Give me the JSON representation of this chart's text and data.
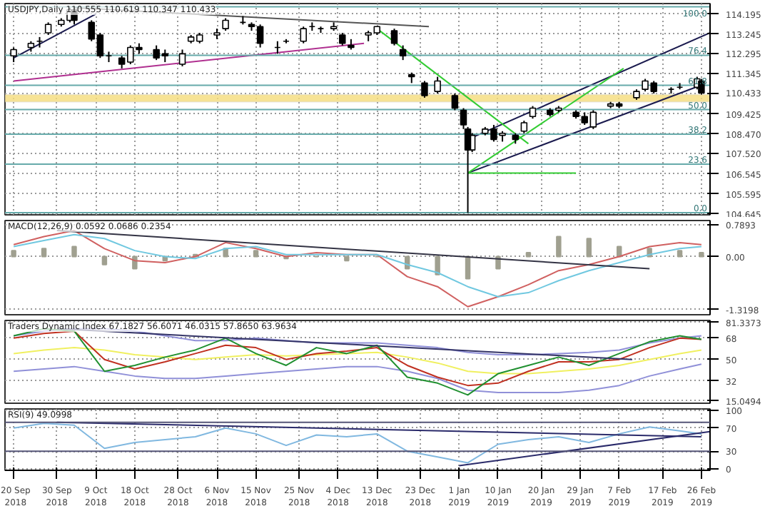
{
  "chart_data": [
    {
      "type": "candlestick",
      "title": "USDJPY,Daily 110.555 110.619 110.347 110.433",
      "grid": true,
      "tick_labels": "y",
      "xlim": [
        "2018-09-18",
        "2019-02-28"
      ],
      "xticks": [
        "2018-09-20",
        "2018-09-30",
        "2018-10-09",
        "2018-10-18",
        "2018-10-28",
        "2018-11-06",
        "2018-11-15",
        "2018-11-25",
        "2018-12-04",
        "2018-12-13",
        "2018-12-23",
        "2019-01-01",
        "2019-01-10",
        "2019-01-20",
        "2019-01-29",
        "2019-02-07",
        "2019-02-17",
        "2019-02-26"
      ],
      "ylim": [
        104.6,
        114.7
      ],
      "yticks": [
        {
          "value": 104.645,
          "label": "104.645"
        },
        {
          "value": 105.595,
          "label": "105.595"
        },
        {
          "value": 106.545,
          "label": "106.545"
        },
        {
          "value": 107.52,
          "label": "107.520"
        },
        {
          "value": 108.47,
          "label": "108.470"
        },
        {
          "value": 109.425,
          "label": "109.425"
        },
        {
          "value": 110.433,
          "label": "110.433"
        },
        {
          "value": 111.345,
          "label": "111.345"
        },
        {
          "value": 112.295,
          "label": "112.295"
        },
        {
          "value": 113.245,
          "label": "113.245"
        },
        {
          "value": 114.195,
          "label": "114.195"
        }
      ],
      "x": [
        "2018-09-20",
        "2018-09-24",
        "2018-09-26",
        "2018-09-28",
        "2018-10-01",
        "2018-10-03",
        "2018-10-04",
        "2018-10-08",
        "2018-10-10",
        "2018-10-12",
        "2018-10-15",
        "2018-10-17",
        "2018-10-19",
        "2018-10-23",
        "2018-10-25",
        "2018-10-29",
        "2018-10-31",
        "2018-11-02",
        "2018-11-06",
        "2018-11-08",
        "2018-11-12",
        "2018-11-14",
        "2018-11-16",
        "2018-11-20",
        "2018-11-22",
        "2018-11-26",
        "2018-11-28",
        "2018-11-30",
        "2018-12-03",
        "2018-12-05",
        "2018-12-07",
        "2018-12-11",
        "2018-12-13",
        "2018-12-17",
        "2018-12-19",
        "2018-12-21",
        "2018-12-24",
        "2018-12-27",
        "2018-12-31",
        "2019-01-02",
        "2019-01-03",
        "2019-01-04",
        "2019-01-07",
        "2019-01-09",
        "2019-01-11",
        "2019-01-14",
        "2019-01-16",
        "2019-01-18",
        "2019-01-22",
        "2019-01-24",
        "2019-01-28",
        "2019-01-30",
        "2019-02-01",
        "2019-02-05",
        "2019-02-07",
        "2019-02-11",
        "2019-02-13",
        "2019-02-15",
        "2019-02-19",
        "2019-02-21",
        "2019-02-25",
        "2019-02-26"
      ],
      "ohlc": [
        [
          112.2,
          112.6,
          111.9,
          112.5
        ],
        [
          112.6,
          112.9,
          112.4,
          112.8
        ],
        [
          112.9,
          113.1,
          112.6,
          112.9
        ],
        [
          113.3,
          113.8,
          113.2,
          113.7
        ],
        [
          113.7,
          114.0,
          113.6,
          113.9
        ],
        [
          113.9,
          114.5,
          113.8,
          114.4
        ],
        [
          114.4,
          114.55,
          113.7,
          113.9
        ],
        [
          113.8,
          113.9,
          112.9,
          113.0
        ],
        [
          113.2,
          113.3,
          112.1,
          112.2
        ],
        [
          112.2,
          112.4,
          111.9,
          112.2
        ],
        [
          112.1,
          112.2,
          111.6,
          111.8
        ],
        [
          111.9,
          112.7,
          111.8,
          112.6
        ],
        [
          112.6,
          112.8,
          112.3,
          112.5
        ],
        [
          112.5,
          112.7,
          112.0,
          112.1
        ],
        [
          112.3,
          112.5,
          111.9,
          112.2
        ],
        [
          111.8,
          112.5,
          111.7,
          112.3
        ],
        [
          112.9,
          113.2,
          112.8,
          113.1
        ],
        [
          112.9,
          113.3,
          112.8,
          113.2
        ],
        [
          113.2,
          113.5,
          113.0,
          113.3
        ],
        [
          113.5,
          114.0,
          113.4,
          113.9
        ],
        [
          113.8,
          114.1,
          113.7,
          113.8
        ],
        [
          113.7,
          113.8,
          113.4,
          113.6
        ],
        [
          113.6,
          113.7,
          112.6,
          112.8
        ],
        [
          112.6,
          112.9,
          112.3,
          112.6
        ],
        [
          112.9,
          113.0,
          112.8,
          112.9
        ],
        [
          112.9,
          113.6,
          112.8,
          113.5
        ],
        [
          113.6,
          113.8,
          113.4,
          113.6
        ],
        [
          113.5,
          113.6,
          113.3,
          113.5
        ],
        [
          113.5,
          113.8,
          113.4,
          113.6
        ],
        [
          113.2,
          113.3,
          112.7,
          112.8
        ],
        [
          112.7,
          113.0,
          112.5,
          112.6
        ],
        [
          113.2,
          113.4,
          112.9,
          113.3
        ],
        [
          113.3,
          113.6,
          113.2,
          113.6
        ],
        [
          113.4,
          113.5,
          112.7,
          112.8
        ],
        [
          112.5,
          112.7,
          112.0,
          112.2
        ],
        [
          111.3,
          111.4,
          110.9,
          111.2
        ],
        [
          110.9,
          111.0,
          110.2,
          110.3
        ],
        [
          110.5,
          111.2,
          110.4,
          111.0
        ],
        [
          110.3,
          110.4,
          109.6,
          109.7
        ],
        [
          109.6,
          109.7,
          108.7,
          108.9
        ],
        [
          108.7,
          108.8,
          104.7,
          107.7
        ],
        [
          107.7,
          108.5,
          107.6,
          108.4
        ],
        [
          108.5,
          108.8,
          108.4,
          108.7
        ],
        [
          108.7,
          108.9,
          108.1,
          108.2
        ],
        [
          108.4,
          108.6,
          108.1,
          108.5
        ],
        [
          108.4,
          108.5,
          108.0,
          108.2
        ],
        [
          108.6,
          109.1,
          108.5,
          109.0
        ],
        [
          109.3,
          109.8,
          109.2,
          109.7
        ],
        [
          109.6,
          109.7,
          109.3,
          109.4
        ],
        [
          109.6,
          109.8,
          109.5,
          109.7
        ],
        [
          109.5,
          109.6,
          109.2,
          109.3
        ],
        [
          109.3,
          109.5,
          108.9,
          109.0
        ],
        [
          108.8,
          109.6,
          108.7,
          109.5
        ],
        [
          109.8,
          110.0,
          109.7,
          109.9
        ],
        [
          109.9,
          110.0,
          109.7,
          109.8
        ],
        [
          110.2,
          110.6,
          110.1,
          110.5
        ],
        [
          110.6,
          111.1,
          110.5,
          111.0
        ],
        [
          110.9,
          111.0,
          110.4,
          110.5
        ],
        [
          110.6,
          110.7,
          110.4,
          110.6
        ],
        [
          110.7,
          110.9,
          110.6,
          110.7
        ],
        [
          110.7,
          111.2,
          110.6,
          111.1
        ],
        [
          111.0,
          111.1,
          110.35,
          110.43
        ]
      ],
      "series": [
        {
          "type": "line",
          "color": "#1a1a4e",
          "x": [
            "2019-01-03",
            "2019-02-26"
          ],
          "values": [
            106.6,
            110.8
          ]
        },
        {
          "type": "line",
          "color": "#1a1a4e",
          "x": [
            "2019-01-04",
            "2019-02-28"
          ],
          "values": [
            108.3,
            113.3
          ]
        },
        {
          "type": "line",
          "color": "#33cc33",
          "x": [
            "2019-01-03",
            "2019-02-08"
          ],
          "values": [
            106.6,
            111.6
          ]
        },
        {
          "type": "line",
          "color": "#33cc33",
          "x": [
            "2018-12-13",
            "2019-01-17"
          ],
          "values": [
            113.5,
            108.0
          ]
        },
        {
          "type": "line",
          "color": "#33cc33",
          "x": [
            "2019-01-03",
            "2019-01-28"
          ],
          "values": [
            106.6,
            106.6
          ]
        },
        {
          "type": "line",
          "color": "#1a1a4e",
          "x": [
            "2018-09-20",
            "2018-10-09"
          ],
          "values": [
            112.1,
            114.2
          ]
        },
        {
          "type": "line",
          "color": "#b03090",
          "x": [
            "2018-09-20",
            "2018-12-10"
          ],
          "values": [
            111.0,
            112.8
          ]
        },
        {
          "type": "line",
          "color": "#555555",
          "x": [
            "2018-10-04",
            "2018-12-25"
          ],
          "values": [
            114.5,
            113.6
          ]
        },
        {
          "type": "line",
          "color": "#66aaaa",
          "x": [
            "2018-09-18",
            "2019-02-28"
          ],
          "values": [
            114.55,
            114.55
          ]
        },
        {
          "type": "line",
          "color": "#66aaaa",
          "x": [
            "2018-09-18",
            "2019-02-28"
          ],
          "values": [
            112.23,
            112.23
          ]
        },
        {
          "type": "line",
          "color": "#66aaaa",
          "x": [
            "2018-09-18",
            "2019-02-28"
          ],
          "values": [
            110.79,
            110.79
          ]
        },
        {
          "type": "line",
          "color": "#66aaaa",
          "x": [
            "2018-09-18",
            "2019-02-28"
          ],
          "values": [
            109.63,
            109.63
          ]
        },
        {
          "type": "line",
          "color": "#66aaaa",
          "x": [
            "2018-09-18",
            "2019-02-28"
          ],
          "values": [
            108.46,
            108.46
          ]
        },
        {
          "type": "line",
          "color": "#66aaaa",
          "x": [
            "2018-09-18",
            "2019-02-28"
          ],
          "values": [
            107.02,
            107.02
          ]
        },
        {
          "type": "line",
          "color": "#66aaaa",
          "x": [
            "2018-09-18",
            "2019-02-28"
          ],
          "values": [
            104.7,
            104.7
          ]
        }
      ],
      "bands": [
        {
          "axis": "y",
          "from": 110.0,
          "to": 110.35,
          "color": "#f5dc7a"
        }
      ],
      "annotations": [
        {
          "text": "100.0",
          "x": "2019-02-28",
          "y": 114.55
        },
        {
          "text": "76.4",
          "x": "2019-02-28",
          "y": 112.23
        },
        {
          "text": "61.8",
          "x": "2019-02-28",
          "y": 110.79
        },
        {
          "text": "50.0",
          "x": "2019-02-28",
          "y": 109.63
        },
        {
          "text": "38.2",
          "x": "2019-02-28",
          "y": 108.46
        },
        {
          "text": "23.6",
          "x": "2019-02-28",
          "y": 107.02
        },
        {
          "text": "0.0",
          "x": "2019-02-28",
          "y": 104.7
        }
      ]
    },
    {
      "type": "bar",
      "title": "MACD(12,26,9) 0.0592 0.0686 0.2354",
      "grid": true,
      "tick_labels": "y",
      "xlim": [
        "2018-09-18",
        "2019-02-28"
      ],
      "ylim": [
        -1.45,
        0.9
      ],
      "yticks": [
        {
          "value": 0.7893,
          "label": "0.7893"
        },
        {
          "value": 0,
          "label": "0.00"
        },
        {
          "value": -1.3198,
          "label": "-1.3198"
        }
      ],
      "x": [
        "2018-09-20",
        "2018-09-27",
        "2018-10-04",
        "2018-10-11",
        "2018-10-18",
        "2018-10-25",
        "2018-11-01",
        "2018-11-08",
        "2018-11-15",
        "2018-11-22",
        "2018-11-29",
        "2018-12-06",
        "2018-12-13",
        "2018-12-20",
        "2018-12-27",
        "2019-01-03",
        "2019-01-10",
        "2019-01-17",
        "2019-01-24",
        "2019-01-31",
        "2019-02-07",
        "2019-02-14",
        "2019-02-21",
        "2019-02-26"
      ],
      "series": [
        {
          "type": "bar",
          "color": "#a0a090",
          "values": [
            0.15,
            0.2,
            0.25,
            -0.2,
            -0.3,
            -0.1,
            0.05,
            0.2,
            0.15,
            -0.05,
            0.0,
            -0.1,
            0.0,
            -0.3,
            -0.45,
            -0.55,
            -0.3,
            0.1,
            0.5,
            0.45,
            0.25,
            0.2,
            0.15,
            0.1
          ]
        },
        {
          "type": "line",
          "color": "#d06060",
          "values": [
            0.3,
            0.5,
            0.65,
            0.2,
            -0.1,
            -0.15,
            0.0,
            0.35,
            0.2,
            0.0,
            0.1,
            0.05,
            0.05,
            -0.5,
            -0.75,
            -1.25,
            -1.0,
            -0.7,
            -0.35,
            -0.2,
            0.0,
            0.25,
            0.35,
            0.3
          ]
        },
        {
          "type": "line",
          "color": "#70c8e0",
          "values": [
            0.25,
            0.4,
            0.55,
            0.45,
            0.15,
            0.0,
            -0.05,
            0.2,
            0.25,
            0.05,
            0.05,
            0.05,
            0.05,
            -0.2,
            -0.4,
            -0.75,
            -1.0,
            -0.9,
            -0.6,
            -0.35,
            -0.15,
            0.05,
            0.2,
            0.25
          ]
        },
        {
          "type": "line",
          "color": "#333344",
          "x": [
            "2018-09-30",
            "2019-02-14"
          ],
          "values": [
            0.65,
            -0.3
          ]
        }
      ]
    },
    {
      "type": "line",
      "title": "Traders Dynamic Index 67.1827 56.6071 46.0315 57.8650 63.9634",
      "grid": true,
      "tick_labels": "y",
      "xlim": [
        "2018-09-18",
        "2019-02-28"
      ],
      "ylim": [
        13,
        83
      ],
      "yticks": [
        {
          "value": 81.3373,
          "label": "81.3373"
        },
        68,
        50,
        32,
        {
          "value": 15.0494,
          "label": "15.0494"
        }
      ],
      "x": [
        "2018-09-20",
        "2018-09-27",
        "2018-10-04",
        "2018-10-11",
        "2018-10-18",
        "2018-10-25",
        "2018-11-01",
        "2018-11-08",
        "2018-11-15",
        "2018-11-22",
        "2018-11-29",
        "2018-12-06",
        "2018-12-13",
        "2018-12-20",
        "2018-12-27",
        "2019-01-03",
        "2019-01-10",
        "2019-01-17",
        "2019-01-24",
        "2019-01-31",
        "2019-02-07",
        "2019-02-14",
        "2019-02-21",
        "2019-02-26"
      ],
      "series": [
        {
          "color": "#9090d8",
          "values": [
            70,
            74,
            76,
            76,
            74,
            70,
            66,
            66,
            68,
            66,
            64,
            64,
            64,
            62,
            60,
            56,
            54,
            54,
            55,
            56,
            58,
            64,
            68,
            70
          ]
        },
        {
          "color": "#9090d8",
          "values": [
            40,
            42,
            44,
            40,
            36,
            34,
            34,
            36,
            38,
            40,
            42,
            44,
            44,
            40,
            34,
            24,
            22,
            22,
            22,
            24,
            28,
            36,
            42,
            46
          ]
        },
        {
          "color": "#f0f060",
          "values": [
            55,
            58,
            60,
            58,
            54,
            52,
            50,
            52,
            54,
            53,
            54,
            55,
            56,
            52,
            47,
            40,
            38,
            38,
            40,
            42,
            45,
            50,
            55,
            58
          ]
        },
        {
          "color": "#c03020",
          "values": [
            68,
            72,
            74,
            50,
            42,
            48,
            55,
            62,
            60,
            50,
            55,
            57,
            60,
            45,
            35,
            28,
            30,
            40,
            48,
            48,
            50,
            60,
            68,
            67
          ]
        },
        {
          "color": "#209030",
          "values": [
            70,
            76,
            74,
            40,
            45,
            52,
            58,
            68,
            55,
            45,
            60,
            55,
            62,
            35,
            30,
            20,
            38,
            45,
            52,
            45,
            55,
            65,
            70,
            67
          ]
        },
        {
          "color": "#333366",
          "x": [
            "2018-09-30",
            "2019-02-10"
          ],
          "values": [
            76,
            50
          ]
        }
      ]
    },
    {
      "type": "line",
      "title": "RSI(9) 49.0998",
      "grid": true,
      "xlim": [
        "2018-09-18",
        "2019-02-28"
      ],
      "xticks": [
        {
          "value": "2018-09-20",
          "label": "20 Sep 2018"
        },
        {
          "value": "2018-09-30",
          "label": "30 Sep 2018"
        },
        {
          "value": "2018-10-09",
          "label": "9 Oct 2018"
        },
        {
          "value": "2018-10-18",
          "label": "18 Oct 2018"
        },
        {
          "value": "2018-10-28",
          "label": "28 Oct 2018"
        },
        {
          "value": "2018-11-06",
          "label": "6 Nov 2018"
        },
        {
          "value": "2018-11-15",
          "label": "15 Nov 2018"
        },
        {
          "value": "2018-11-25",
          "label": "25 Nov 2018"
        },
        {
          "value": "2018-12-04",
          "label": "4 Dec 2018"
        },
        {
          "value": "2018-12-13",
          "label": "13 Dec 2018"
        },
        {
          "value": "2018-12-23",
          "label": "23 Dec 2018"
        },
        {
          "value": "2019-01-01",
          "label": "1 Jan 2019"
        },
        {
          "value": "2019-01-10",
          "label": "10 Jan 2019"
        },
        {
          "value": "2019-01-20",
          "label": "20 Jan 2019"
        },
        {
          "value": "2019-01-29",
          "label": "29 Jan 2019"
        },
        {
          "value": "2019-02-07",
          "label": "7 Feb 2019"
        },
        {
          "value": "2019-02-17",
          "label": "17 Feb 2019"
        },
        {
          "value": "2019-02-26",
          "label": "26 Feb 2019"
        }
      ],
      "ylim": [
        -3,
        103
      ],
      "yticks": [
        100,
        70,
        30,
        0
      ],
      "x": [
        "2018-09-20",
        "2018-09-27",
        "2018-10-04",
        "2018-10-11",
        "2018-10-18",
        "2018-10-25",
        "2018-11-01",
        "2018-11-08",
        "2018-11-15",
        "2018-11-22",
        "2018-11-29",
        "2018-12-06",
        "2018-12-13",
        "2018-12-20",
        "2018-12-27",
        "2019-01-03",
        "2019-01-10",
        "2019-01-17",
        "2019-01-24",
        "2019-01-31",
        "2019-02-07",
        "2019-02-14",
        "2019-02-21",
        "2019-02-26"
      ],
      "series": [
        {
          "color": "#80b8e0",
          "values": [
            70,
            78,
            75,
            35,
            45,
            50,
            55,
            70,
            60,
            40,
            58,
            55,
            60,
            30,
            20,
            10,
            42,
            50,
            55,
            45,
            60,
            72,
            65,
            60
          ]
        },
        {
          "color": "#2a2a6a",
          "x": [
            "2018-09-30",
            "2019-02-26"
          ],
          "values": [
            80,
            55
          ]
        },
        {
          "color": "#2a2a6a",
          "x": [
            "2019-01-01",
            "2019-02-28"
          ],
          "values": [
            5,
            64
          ]
        }
      ],
      "ref_lines": [
        {
          "axis": "y",
          "value": 80,
          "color": "#555577"
        },
        {
          "axis": "y",
          "value": 30,
          "color": "#555577"
        }
      ]
    }
  ]
}
